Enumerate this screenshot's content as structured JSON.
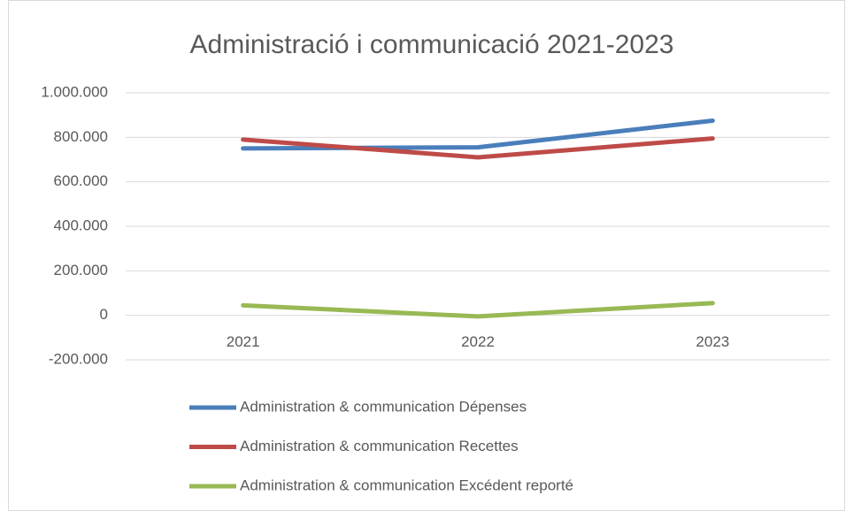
{
  "chart_data": {
    "type": "line",
    "title": "Administració i communicació 2021-2023",
    "categories": [
      "2021",
      "2022",
      "2023"
    ],
    "series": [
      {
        "name": "Administration & communication Dépenses",
        "color": "#4a7ebb",
        "values": [
          750000,
          755000,
          875000
        ]
      },
      {
        "name": "Administration & communication Recettes",
        "color": "#be4b48",
        "values": [
          790000,
          710000,
          795000
        ]
      },
      {
        "name": "Administration & communication Excédent reporté",
        "color": "#98b954",
        "values": [
          45000,
          -5000,
          55000
        ]
      }
    ],
    "ylim": [
      -200000,
      1000000
    ],
    "yticks": [
      {
        "value": -200000,
        "label": "-200.000"
      },
      0,
      {
        "value": 200000,
        "label": "200.000"
      },
      {
        "value": 400000,
        "label": "400.000"
      },
      {
        "value": 600000,
        "label": "600.000"
      },
      {
        "value": 800000,
        "label": "800.000"
      },
      {
        "value": 1000000,
        "label": "1.000.000"
      }
    ],
    "grid": true,
    "legend": "bottom"
  }
}
